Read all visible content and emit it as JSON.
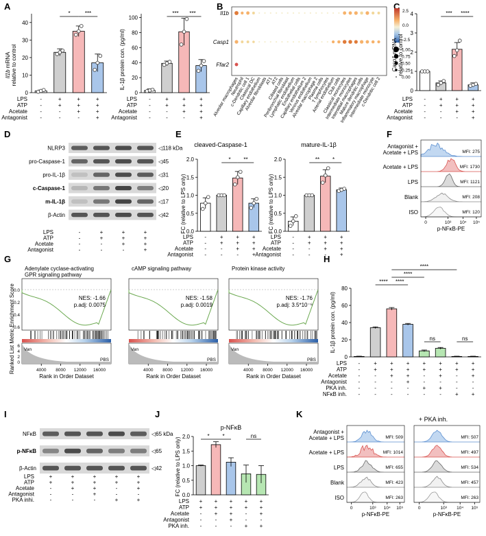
{
  "panel_labels": [
    "A",
    "B",
    "C",
    "D",
    "E",
    "F",
    "G",
    "H",
    "I",
    "J",
    "K"
  ],
  "colors": {
    "gray": "#cfcfcf",
    "pink": "#f6b8b8",
    "blue": "#a9c6ea",
    "green": "#b6e6b2",
    "orange": "#f7c99a",
    "white": "#ffffff",
    "red_hist": "#e88a8a",
    "blue_hist": "#8fb8e6",
    "gray_hist": "#bdbdbd"
  },
  "cond4": {
    "rows": [
      "LPS",
      "ATP",
      "Acetate",
      "Antagonist"
    ],
    "cols": [
      [
        "-",
        "-",
        "-",
        "-"
      ],
      [
        "+",
        "+",
        "-",
        "-"
      ],
      [
        "+",
        "+",
        "+",
        "-"
      ],
      [
        "+",
        "+",
        "+",
        "+"
      ]
    ]
  },
  "A": {
    "left": {
      "ylabel_italic": "Il1b",
      "ylabel_rest": "mRNA",
      "ylabel2": "relative to control",
      "ticks": [
        "0",
        "10",
        "20",
        "30",
        "40"
      ],
      "sig": [
        "*",
        "***"
      ],
      "chart_data": {
        "type": "bar",
        "categories": [
          "ctrl",
          "LPS+ATP",
          "Acetate",
          "Antagonist"
        ],
        "values": [
          1,
          23,
          35,
          17
        ],
        "errors": [
          0.5,
          2,
          3,
          5
        ],
        "points": [
          [
            0.5,
            1,
            1.5
          ],
          [
            22,
            23,
            24
          ],
          [
            33,
            35,
            38
          ],
          [
            13,
            17,
            21
          ]
        ],
        "ylim": [
          0,
          45
        ]
      }
    },
    "right": {
      "ylabel": "IL-1β protein con. (pg/ml)",
      "ticks": [
        "0",
        "20",
        "40",
        "60",
        "80",
        "100"
      ],
      "sig": [
        "***",
        "***"
      ],
      "chart_data": {
        "type": "bar",
        "categories": [
          "ctrl",
          "LPS+ATP",
          "Acetate",
          "Antagonist"
        ],
        "values": [
          3,
          39,
          81,
          36
        ],
        "errors": [
          2,
          3,
          18,
          8
        ],
        "points": [
          [
            2,
            3,
            4
          ],
          [
            37,
            39,
            41
          ],
          [
            64,
            81,
            98
          ],
          [
            29,
            36,
            42
          ]
        ],
        "ylim": [
          0,
          105
        ]
      }
    }
  },
  "B": {
    "genes": [
      "Il1b",
      "Casp1",
      "Ffar2"
    ],
    "celltypes": [
      "Alveolar macrophages",
      "Neutrophil",
      "c-Dendritic cell 1",
      "Classical DC",
      "Capillary endothelium",
      "Alveolar fibroblasts",
      "AT1",
      "AT2",
      "Ciliated cells",
      "Peribronchial fibroblast",
      "Lymphatic endothelium",
      "Endothelial cells",
      "Capillary endothelium 2",
      "Venous endothelium",
      "Alveolar macrophage 2",
      "Plasma cells",
      "T lymphocytes",
      "Arterial endothelium",
      "Club cells",
      "Classical monocytes",
      "Intermediate monocytes",
      "Interstitial macrophages",
      "Mature dendritic cells",
      "Inflammatory macrophage",
      "Intermediate monocyte",
      "c-Dendritic cell 2"
    ],
    "colorbar": [
      "2.5",
      "0.0",
      "-2.5"
    ],
    "size_legend": [
      "1.00",
      "0.75",
      "0.50",
      "0.25",
      "0.00"
    ]
  },
  "C": {
    "ylabel_italic": "Casp1",
    "ylabel_rest": "mRNA",
    "ylabel2": "relative to control",
    "ticks": [
      "0",
      "1",
      "2",
      "3",
      "4"
    ],
    "sig": [
      "***",
      "****"
    ],
    "chart_data": {
      "type": "bar",
      "categories": [
        "ctrl",
        "LPS+ATP",
        "Acetate",
        "Antagonist"
      ],
      "values": [
        1,
        0.4,
        2.15,
        0.3
      ],
      "errors": [
        0.05,
        0.1,
        0.35,
        0.1
      ],
      "points": [
        [
          1,
          1,
          1
        ],
        [
          0.3,
          0.4,
          0.5
        ],
        [
          1.8,
          2.1,
          2.6
        ],
        [
          0.25,
          0.3,
          0.35
        ]
      ],
      "ylim": [
        0,
        4
      ]
    }
  },
  "D": {
    "rows": [
      {
        "label": "NLRP3",
        "bold": false,
        "size": "◁118 kDa"
      },
      {
        "label": "pro-Caspase-1",
        "bold": false,
        "size": "◁45"
      },
      {
        "label": "pro-IL-1β",
        "bold": false,
        "size": "◁31"
      },
      {
        "label": "c-Caspase-1",
        "bold": true,
        "size": "◁20"
      },
      {
        "label": "m-IL-1β",
        "bold": true,
        "size": "◁17"
      },
      {
        "label": "β-Actin",
        "bold": false,
        "size": "◁42"
      }
    ]
  },
  "E": {
    "left": {
      "title": "cleaved-Caspase-1",
      "ylabel": "FC (relative to LPS only)",
      "ticks": [
        "0.0",
        "0.5",
        "1.0",
        "1.5",
        "2.0"
      ],
      "sig": [
        "*",
        "**"
      ],
      "chart_data": {
        "type": "bar",
        "categories": [
          "ctrl",
          "LPS+ATP",
          "Acetate",
          "Antagonist"
        ],
        "values": [
          0.78,
          1.0,
          1.48,
          0.78
        ],
        "errors": [
          0.15,
          0.02,
          0.18,
          0.12
        ],
        "points": [
          [
            0.62,
            0.78,
            0.95
          ],
          [
            1,
            1,
            1
          ],
          [
            1.3,
            1.5,
            1.65
          ],
          [
            0.65,
            0.78,
            0.9
          ]
        ],
        "ylim": [
          0,
          2
        ]
      }
    },
    "right": {
      "title": "mature-IL-1β",
      "ylabel": "FC (relative to LPS only)",
      "ticks": [
        "0.0",
        "0.5",
        "1.0",
        "1.5",
        "2.0"
      ],
      "sig": [
        "**",
        "*"
      ],
      "chart_data": {
        "type": "bar",
        "categories": [
          "ctrl",
          "LPS+ATP",
          "Acetate",
          "Antagonist"
        ],
        "values": [
          0.28,
          1.0,
          1.53,
          1.15
        ],
        "errors": [
          0.12,
          0.02,
          0.18,
          0.05
        ],
        "points": [
          [
            0.15,
            0.28,
            0.42
          ],
          [
            1,
            1,
            1
          ],
          [
            1.35,
            1.55,
            1.75
          ],
          [
            1.12,
            1.15,
            1.18
          ]
        ],
        "ylim": [
          0,
          2
        ]
      }
    }
  },
  "F": {
    "xlabel": "p-NFκB-PE",
    "ticks": [
      "0",
      "10³",
      "10⁴",
      "10⁵"
    ],
    "rows": [
      {
        "label": "Antagonist +",
        "label2": "Acetate + LPS",
        "mfi": "MFI: 275"
      },
      {
        "label": "Acetate + LPS",
        "mfi": "MFI: 1730"
      },
      {
        "label": "LPS",
        "mfi": "MFI: 1121"
      },
      {
        "label": "Blank",
        "mfi": "MFI: 208"
      },
      {
        "label": "ISO",
        "mfi": "MFI: 120"
      }
    ]
  },
  "G": {
    "ylabel_top": "Enrichment Score",
    "ylabel_bottom": "Ranked List Metric",
    "xlabel": "Rank in Order Dataset",
    "van": "Van",
    "pbs": "PBS",
    "xticks": [
      "4000",
      "8000",
      "12000",
      "16000"
    ],
    "yticks": [
      "0.0",
      "-0.2",
      "-0.4",
      "-0.6"
    ],
    "mticks": [
      "6",
      "4",
      "2",
      "0"
    ],
    "panels": [
      {
        "title": "Adenylate cyclase-activating",
        "title2": "GPR signaling pathway",
        "nes": "NES: -1.66",
        "padj": "p.adj: 0.0075"
      },
      {
        "title": "cAMP signaling pathway",
        "nes": "NES: -1.58",
        "padj": "p.adj: 0.0019"
      },
      {
        "title": "Protein kinase activity",
        "nes": "NES: -1.76",
        "padj": "p.adj: 3.5*10⁻⁶"
      }
    ]
  },
  "H": {
    "ylabel": "IL-1β protein con. (pg/ml)",
    "ticks": [
      "0",
      "20",
      "40",
      "60",
      "80"
    ],
    "sig": [
      "****",
      "****",
      "****",
      "****",
      "ns",
      "ns"
    ],
    "rows": [
      "LPS",
      "ATP",
      "Acetate",
      "Antagonist",
      "PKA inh.",
      "NFκB inh."
    ],
    "cols": [
      [
        "-",
        "-",
        "-",
        "-",
        "-",
        "-"
      ],
      [
        "+",
        "+",
        "-",
        "-",
        "-",
        "-"
      ],
      [
        "+",
        "+",
        "+",
        "-",
        "-",
        "-"
      ],
      [
        "+",
        "+",
        "+",
        "+",
        "-",
        "-"
      ],
      [
        "+",
        "+",
        "-",
        "-",
        "+",
        "-"
      ],
      [
        "+",
        "+",
        "+",
        "-",
        "+",
        "-"
      ],
      [
        "+",
        "+",
        "-",
        "-",
        "-",
        "+"
      ],
      [
        "+",
        "+",
        "+",
        "-",
        "-",
        "+"
      ]
    ],
    "chart_data": {
      "type": "bar",
      "categories": [
        "ctrl",
        "LPS+ATP",
        "Acetate",
        "Antagonist",
        "PKA inh.",
        "Acetate+PKA",
        "NFkB inh.",
        "Acetate+NFkB"
      ],
      "values": [
        0.5,
        34,
        56,
        38,
        7,
        10,
        0.5,
        0.5
      ],
      "errors": [
        0.3,
        1,
        1.5,
        1,
        1,
        1,
        0.3,
        0.3
      ],
      "ylim": [
        0,
        80
      ]
    }
  },
  "I": {
    "rows": [
      {
        "label": "NFκB",
        "bold": false,
        "size": "◁65 kDa"
      },
      {
        "label": "p-NFκB",
        "bold": true,
        "size": "◁65"
      },
      {
        "label": "β-Actin",
        "bold": false,
        "size": "◁42"
      }
    ],
    "conds": {
      "rows": [
        "LPS",
        "ATP",
        "Acetate",
        "Antagonist",
        "PKA inhi."
      ],
      "cols": [
        [
          "+",
          "+",
          "-",
          "-",
          "-"
        ],
        [
          "+",
          "+",
          "+",
          "-",
          "-"
        ],
        [
          "+",
          "+",
          "+",
          "+",
          "-"
        ],
        [
          "+",
          "+",
          "-",
          "-",
          "+"
        ],
        [
          "+",
          "+",
          "+",
          "-",
          "+"
        ]
      ]
    }
  },
  "J": {
    "title": "p-NFκB",
    "ylabel": "FC (relative to LPS only)",
    "ticks": [
      "0.0",
      "0.5",
      "1.0",
      "1.5",
      "2.0"
    ],
    "sig": [
      "*",
      "*",
      "ns"
    ],
    "rows": [
      "LPS",
      "ATP",
      "Acetate",
      "Antagonist",
      "PKA inh."
    ],
    "cols": [
      [
        "+",
        "+",
        "-",
        "-",
        "-"
      ],
      [
        "+",
        "+",
        "+",
        "-",
        "-"
      ],
      [
        "+",
        "+",
        "+",
        "+",
        "-"
      ],
      [
        "+",
        "+",
        "-",
        "-",
        "+"
      ],
      [
        "+",
        "+",
        "+",
        "-",
        "+"
      ]
    ],
    "chart_data": {
      "type": "bar",
      "categories": [
        "LPS+ATP",
        "Acetate",
        "Antagonist",
        "PKA inh.",
        "Acetate+PKA"
      ],
      "values": [
        1.0,
        1.72,
        1.12,
        0.72,
        0.7
      ],
      "errors": [
        0.02,
        0.1,
        0.15,
        0.3,
        0.3
      ],
      "ylim": [
        0,
        2
      ]
    }
  },
  "K": {
    "title_right": "+ PKA inh.",
    "xlabel": "p-NFκB-PE",
    "ticks": [
      "0",
      "10³",
      "10⁴",
      "10⁵"
    ],
    "rows": [
      {
        "label": "Antagonist +",
        "label2": "Acetate + LPS",
        "mfi_left": "MFI: 509",
        "mfi_right": "MFI: 507"
      },
      {
        "label": "Acetate + LPS",
        "mfi_left": "MFI: 1014",
        "mfi_right": "MFI: 497"
      },
      {
        "label": "LPS",
        "mfi_left": "MFI: 655",
        "mfi_right": "MFI: 534"
      },
      {
        "label": "Blank",
        "mfi_left": "MFI: 423",
        "mfi_right": "MFI: 457"
      },
      {
        "label": "ISO",
        "mfi_left": "MFI: 263",
        "mfi_right": "MFI: 263"
      }
    ]
  }
}
